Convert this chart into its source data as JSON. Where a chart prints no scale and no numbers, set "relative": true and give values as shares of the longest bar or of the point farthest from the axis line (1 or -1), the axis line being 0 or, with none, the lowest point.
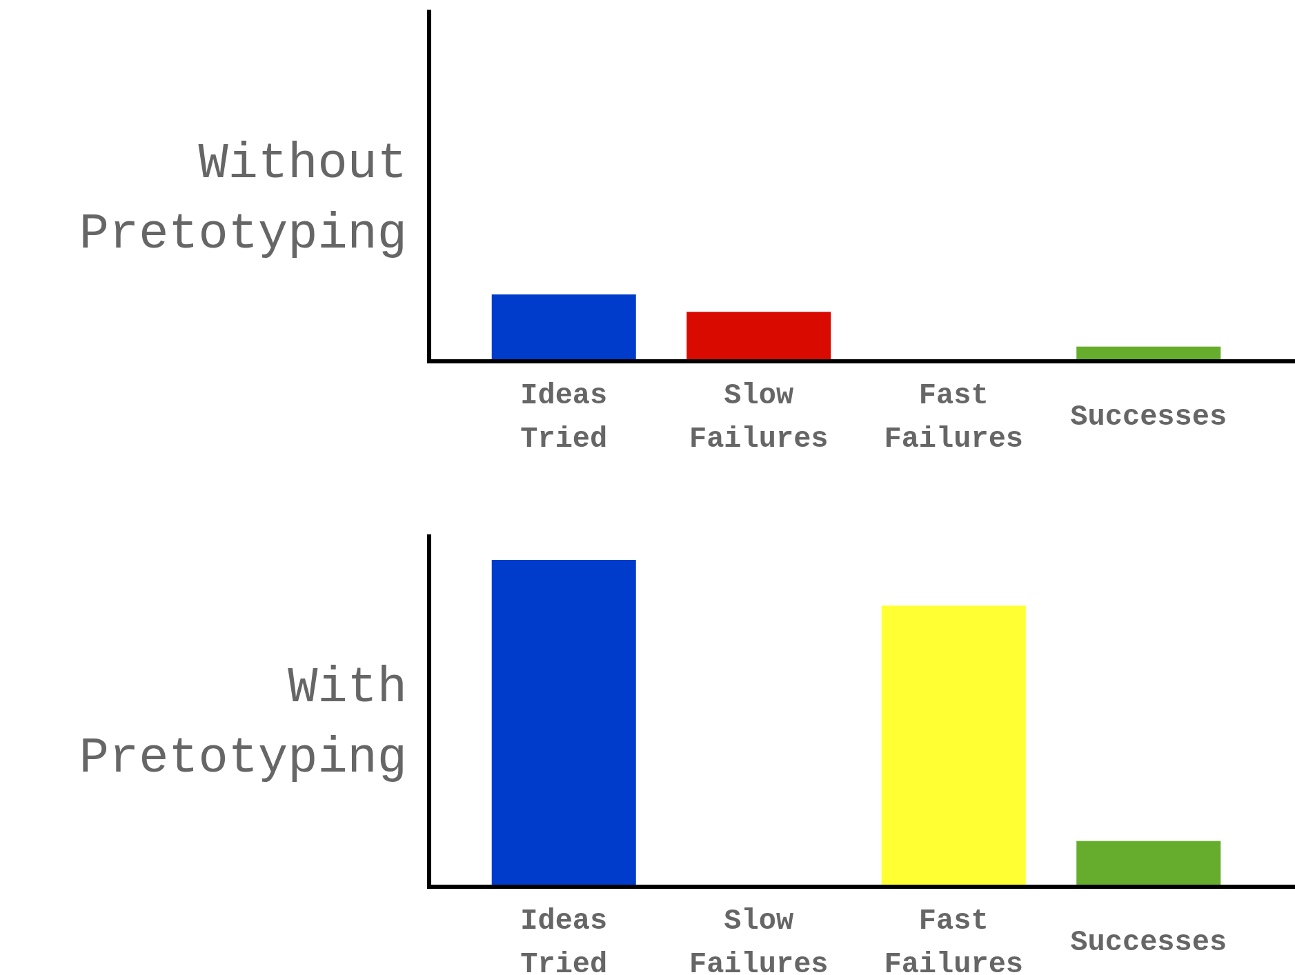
{
  "chart_data": [
    {
      "type": "bar",
      "ylabel": "Without Pretotyping",
      "categories": [
        "Ideas Tried",
        "Slow Failures",
        "Fast Failures",
        "Successes"
      ],
      "values": [
        1,
        0.74,
        0,
        0.22
      ],
      "colors": [
        "#003ccc",
        "#d90b00",
        "#ffff33",
        "#66ad2e"
      ],
      "relative": true
    },
    {
      "type": "bar",
      "ylabel": "With Pretotyping",
      "categories": [
        "Ideas Tried",
        "Slow Failures",
        "Fast Failures",
        "Successes"
      ],
      "values": [
        1,
        0,
        0.86,
        0.14
      ],
      "colors": [
        "#003ccc",
        "#d90b00",
        "#ffff33",
        "#66ad2e"
      ],
      "relative": true
    }
  ]
}
